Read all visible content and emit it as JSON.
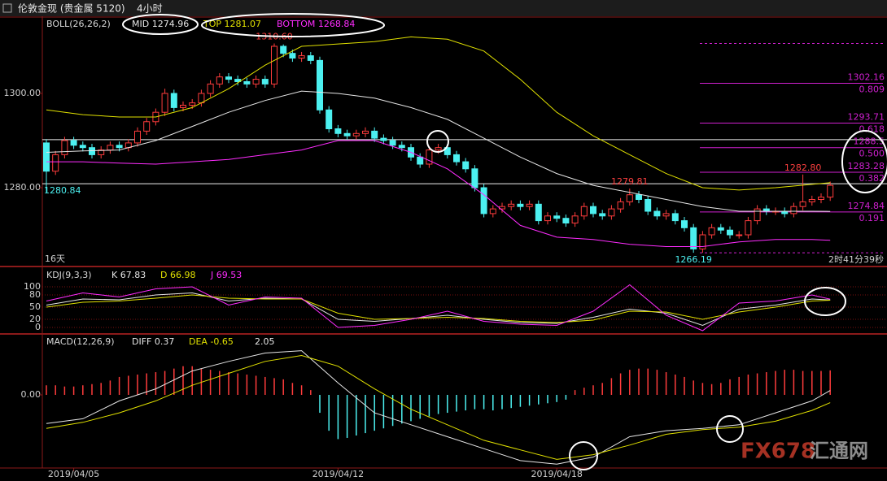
{
  "header": {
    "symbol": "伦敦金现 (贵金属 5120)",
    "period": "4小时"
  },
  "watermark": {
    "brand": "FX678",
    "name": "汇通网"
  },
  "chart_data": [
    {
      "type": "candlestick",
      "title": "BOLL(26,26,2)",
      "title_color": "#d8d8d8",
      "up_color": "#ff3c3c",
      "down_color": "#4cf0f0",
      "open": [
        1289.5,
        1283.5,
        1287,
        1290,
        1289,
        1288.5,
        1287,
        1288,
        1289,
        1288.5,
        1289.5,
        1292,
        1294,
        1296,
        1300,
        1297,
        1297.5,
        1298,
        1300,
        1302,
        1303.5,
        1303,
        1302.5,
        1302,
        1303,
        1302,
        1310,
        1308.5,
        1307.5,
        1308,
        1307,
        1296.5,
        1292.5,
        1291.5,
        1291,
        1291.5,
        1292,
        1290.5,
        1290,
        1289,
        1288.5,
        1286.5,
        1285,
        1288,
        1288.5,
        1287,
        1285.5,
        1284,
        1280,
        1274.5,
        1275.5,
        1276,
        1276.5,
        1276,
        1276.5,
        1273,
        1274,
        1273.5,
        1272.5,
        1274,
        1276,
        1274.5,
        1274,
        1275.5,
        1277,
        1278.5,
        1277.5,
        1275,
        1274,
        1274.5,
        1273,
        1271.5,
        1267,
        1270,
        1271.5,
        1271,
        1270,
        1270,
        1273,
        1275.5,
        1275,
        1275,
        1274.5,
        1276,
        1277,
        1277.5,
        1278
      ],
      "high": [
        1290.3,
        1287.8,
        1290.8,
        1290.8,
        1289.8,
        1289.3,
        1288.8,
        1289.8,
        1289.8,
        1290.3,
        1292.8,
        1294.8,
        1296.8,
        1301,
        1300.8,
        1298.3,
        1298.8,
        1300.8,
        1302.8,
        1304.3,
        1304.3,
        1303.8,
        1303.3,
        1303.8,
        1303.8,
        1310.6,
        1310.4,
        1309.3,
        1308.8,
        1308.8,
        1307.8,
        1297.3,
        1293.3,
        1292.3,
        1292.3,
        1292.8,
        1292.8,
        1291.3,
        1290.8,
        1289.8,
        1289.3,
        1287.3,
        1288.8,
        1289.3,
        1289.3,
        1287.8,
        1286.3,
        1284.8,
        1280.8,
        1276.3,
        1276.8,
        1277.3,
        1277.3,
        1277.3,
        1277.3,
        1274.8,
        1274.8,
        1274.3,
        1274.8,
        1276.8,
        1276.8,
        1275.3,
        1276.3,
        1277.8,
        1279.81,
        1279.3,
        1278.3,
        1275.8,
        1275.3,
        1275.3,
        1273.8,
        1272.3,
        1270.8,
        1272.3,
        1272.3,
        1271.8,
        1270.8,
        1273.8,
        1276.3,
        1276.3,
        1275.8,
        1275.8,
        1276.8,
        1282.8,
        1278.3,
        1278.8,
        1281.3
      ],
      "low": [
        1279,
        1282.7,
        1286.2,
        1288.2,
        1287.7,
        1286.2,
        1286.2,
        1287.2,
        1287.7,
        1287.7,
        1288.7,
        1291.2,
        1293.2,
        1295.2,
        1296.2,
        1296.2,
        1296.7,
        1297.2,
        1299.2,
        1301.2,
        1302.2,
        1301.7,
        1301.2,
        1301.2,
        1301.2,
        1301.2,
        1307.7,
        1306.7,
        1306.7,
        1306.2,
        1295.7,
        1291.7,
        1290.7,
        1290.2,
        1290.2,
        1290.7,
        1289.7,
        1289.2,
        1288.2,
        1287.7,
        1285.7,
        1284.2,
        1284.2,
        1287.2,
        1286.2,
        1284.7,
        1283.2,
        1279.2,
        1273.7,
        1273.7,
        1274.7,
        1275.2,
        1275.2,
        1275.2,
        1272.2,
        1272.2,
        1272.7,
        1271.7,
        1271.7,
        1273.2,
        1273.7,
        1273.2,
        1273.2,
        1274.7,
        1276.2,
        1276.7,
        1274.2,
        1273.2,
        1273.2,
        1272.2,
        1270.7,
        1266.19,
        1266.2,
        1269.2,
        1270.2,
        1269.2,
        1269.2,
        1269.2,
        1272.2,
        1274.2,
        1274.2,
        1273.7,
        1273.7,
        1275.2,
        1276.2,
        1276.7,
        1277.2
      ],
      "close": [
        1283.5,
        1287,
        1290,
        1289,
        1288.5,
        1287,
        1288,
        1289,
        1288.5,
        1289.5,
        1292,
        1294,
        1296,
        1300,
        1297,
        1297.5,
        1298,
        1300,
        1302,
        1303.5,
        1303,
        1302.5,
        1302,
        1303,
        1302,
        1310,
        1308.5,
        1307.5,
        1308,
        1307,
        1296.5,
        1292.5,
        1291.5,
        1291,
        1291.5,
        1292,
        1290.5,
        1290,
        1289,
        1288.5,
        1286.5,
        1285,
        1288,
        1288.5,
        1287,
        1285.5,
        1284,
        1280,
        1274.5,
        1275.5,
        1276,
        1276.5,
        1276,
        1276.5,
        1273,
        1274,
        1273.5,
        1272.5,
        1274,
        1276,
        1274.5,
        1274,
        1275.5,
        1277,
        1278.5,
        1277.5,
        1275,
        1274,
        1274.5,
        1273,
        1271.5,
        1267,
        1270,
        1271.5,
        1271,
        1270,
        1270,
        1273,
        1275.5,
        1275,
        1275,
        1274.5,
        1276,
        1277,
        1277.5,
        1278,
        1280.5
      ],
      "series": [
        {
          "name": "MID 1274.96",
          "color": "#e6e6e6",
          "x": [
            0,
            4,
            8,
            12,
            16,
            20,
            24,
            28,
            32,
            36,
            40,
            44,
            48,
            52,
            56,
            60,
            64,
            68,
            72,
            76,
            80,
            84,
            86
          ],
          "values": [
            1287.5,
            1287.8,
            1288,
            1290,
            1293,
            1296,
            1298.5,
            1300.5,
            1300,
            1299,
            1297,
            1294.5,
            1290.5,
            1286.5,
            1283,
            1280.5,
            1279,
            1277.5,
            1276,
            1275,
            1275,
            1275,
            1274.96
          ]
        },
        {
          "name": "TOP 1281.07",
          "color": "#e0e000",
          "x": [
            0,
            4,
            8,
            12,
            16,
            20,
            24,
            28,
            32,
            36,
            40,
            44,
            48,
            52,
            56,
            60,
            64,
            68,
            72,
            76,
            80,
            84,
            86
          ],
          "values": [
            1296.5,
            1295.5,
            1295,
            1295,
            1297,
            1301,
            1306,
            1310,
            1310.5,
            1311,
            1312,
            1311.5,
            1309,
            1303,
            1296,
            1291,
            1287,
            1283,
            1280,
            1279.5,
            1280,
            1280.7,
            1281.07
          ]
        },
        {
          "name": "BOTTOM 1268.84",
          "color": "#ff2cff",
          "x": [
            0,
            4,
            8,
            12,
            16,
            20,
            24,
            28,
            32,
            36,
            40,
            44,
            48,
            52,
            56,
            60,
            64,
            68,
            72,
            76,
            80,
            84,
            86
          ],
          "values": [
            1285.5,
            1285.5,
            1285.2,
            1285,
            1285.5,
            1286,
            1287,
            1288,
            1290,
            1290,
            1287.5,
            1284,
            1278.5,
            1272,
            1269.5,
            1269,
            1268,
            1267.5,
            1267.5,
            1268.5,
            1269,
            1269,
            1268.84
          ]
        }
      ],
      "ylim": [
        1263.45,
        1316.03
      ],
      "yticks": [
        {
          "value": 1280,
          "label": "1280.00"
        },
        {
          "value": 1300,
          "label": "1300.00"
        }
      ],
      "hlines": [
        {
          "value": 1290.2
        },
        {
          "value": 1280.84,
          "labeled": true
        }
      ],
      "hline_color": "#f0f0f0",
      "hline_label_color": "#4cf0f0",
      "fib_color": "#d020d0",
      "fib_bounds": [
        1310.6,
        1266.19
      ],
      "fib_levels": [
        {
          "value": 1302.16,
          "ratio": "0.809"
        },
        {
          "value": 1293.71,
          "ratio": "0.618"
        },
        {
          "value": 1288.5,
          "ratio": "0.500"
        },
        {
          "value": 1283.28,
          "ratio": "0.382"
        },
        {
          "value": 1274.84,
          "ratio": "0.191"
        }
      ],
      "annotations": [
        {
          "text": "1310.60",
          "x": 25,
          "y": 1310.6,
          "color": "#ff4040",
          "anchor": "above"
        },
        {
          "text": "1279.81",
          "x": 64,
          "y": 1279.81,
          "color": "#ff4040",
          "anchor": "above"
        },
        {
          "text": "1282.80",
          "x": 83,
          "y": 1282.8,
          "color": "#ff4040",
          "anchor": "above"
        },
        {
          "text": "1266.19",
          "x": 71,
          "y": 1266.19,
          "color": "#4cf0f0",
          "anchor": "below"
        }
      ],
      "left_note": "16天",
      "right_note": "2时41分39秒"
    },
    {
      "type": "line",
      "title": "KDJ(9,3,3)",
      "title_color": "#d8d8d8",
      "series": [
        {
          "name": "K 67.83",
          "color": "#e6e6e6",
          "x": [
            0,
            4,
            8,
            12,
            16,
            20,
            24,
            28,
            32,
            36,
            40,
            44,
            48,
            52,
            56,
            60,
            64,
            68,
            72,
            76,
            80,
            84,
            86
          ],
          "values": [
            55,
            70,
            68,
            80,
            85,
            65,
            72,
            70,
            20,
            15,
            22,
            30,
            20,
            12,
            10,
            25,
            45,
            35,
            5,
            45,
            55,
            70,
            67.83
          ]
        },
        {
          "name": "D 66.98",
          "color": "#e0e000",
          "x": [
            0,
            4,
            8,
            12,
            16,
            20,
            24,
            28,
            32,
            36,
            40,
            44,
            48,
            52,
            56,
            60,
            64,
            68,
            72,
            76,
            80,
            84,
            86
          ],
          "values": [
            50,
            62,
            65,
            72,
            80,
            72,
            70,
            70,
            35,
            20,
            22,
            25,
            22,
            15,
            12,
            18,
            40,
            38,
            20,
            38,
            50,
            65,
            66.98
          ]
        },
        {
          "name": "J 69.53",
          "color": "#ff2cff",
          "x": [
            0,
            4,
            8,
            12,
            16,
            20,
            24,
            28,
            32,
            36,
            40,
            44,
            48,
            52,
            56,
            60,
            64,
            68,
            72,
            76,
            80,
            84,
            86
          ],
          "values": [
            65,
            85,
            75,
            95,
            100,
            55,
            75,
            72,
            0,
            5,
            20,
            40,
            15,
            8,
            5,
            40,
            105,
            30,
            -8,
            60,
            65,
            80,
            69.53
          ]
        }
      ],
      "ylim": [
        -14,
        146
      ],
      "yticks": [
        0,
        20,
        50,
        80,
        100
      ],
      "grid": true,
      "grid_color": "#7a1010"
    },
    {
      "type": "macd",
      "title": "MACD(12,26,9)",
      "title_color": "#d8d8d8",
      "histogram": {
        "name": "2.05",
        "color": "#e6e6e6",
        "up_color": "#ff3c3c",
        "down_color": "#4cf0f0",
        "values": [
          0.8,
          0.8,
          0.7,
          0.7,
          0.8,
          0.9,
          1.0,
          1.2,
          1.5,
          1.6,
          1.7,
          1.8,
          1.9,
          2.0,
          2.2,
          2.4,
          2.4,
          2.2,
          2.1,
          2.0,
          1.9,
          1.8,
          1.7,
          1.6,
          1.5,
          1.4,
          1.3,
          1.0,
          0.8,
          0.4,
          -1.5,
          -3.0,
          -3.7,
          -3.6,
          -3.4,
          -3.2,
          -3.0,
          -2.8,
          -2.6,
          -2.4,
          -2.2,
          -2.0,
          -1.8,
          -1.6,
          -1.5,
          -1.4,
          -1.3,
          -1.2,
          -1.2,
          -1.3,
          -1.2,
          -1.1,
          -1.0,
          -0.9,
          -0.8,
          -0.7,
          -0.6,
          -0.4,
          0.4,
          0.6,
          0.8,
          1.0,
          1.4,
          1.8,
          2.1,
          2.2,
          2.2,
          2.1,
          1.9,
          1.7,
          1.5,
          1.2,
          1.0,
          0.9,
          1.0,
          1.3,
          1.5,
          1.7,
          1.8,
          1.9,
          2.0,
          2.1,
          2.1,
          2.0,
          2.0,
          2.0,
          2.05
        ]
      },
      "series": [
        {
          "name": "DIFF 0.37",
          "color": "#e6e6e6",
          "x": [
            0,
            4,
            8,
            12,
            16,
            20,
            24,
            28,
            32,
            36,
            40,
            44,
            48,
            52,
            56,
            60,
            64,
            68,
            72,
            76,
            80,
            84,
            86
          ],
          "values": [
            -2.4,
            -2,
            -0.5,
            0.5,
            2,
            2.8,
            3.5,
            3.7,
            1,
            -1.5,
            -2.5,
            -3.5,
            -4.5,
            -5.5,
            -5.8,
            -5.2,
            -3.5,
            -3,
            -2.8,
            -2.5,
            -1.5,
            -0.5,
            0.37
          ]
        },
        {
          "name": "DEA -0.65",
          "color": "#e0e000",
          "x": [
            0,
            4,
            8,
            12,
            16,
            20,
            24,
            28,
            32,
            36,
            40,
            44,
            48,
            52,
            56,
            60,
            64,
            68,
            72,
            76,
            80,
            84,
            86
          ],
          "values": [
            -2.8,
            -2.3,
            -1.5,
            -0.5,
            0.8,
            1.8,
            2.8,
            3.3,
            2.4,
            0.5,
            -1.2,
            -2.5,
            -3.8,
            -4.6,
            -5.4,
            -5.0,
            -4.2,
            -3.3,
            -2.9,
            -2.7,
            -2.2,
            -1.3,
            -0.65
          ]
        }
      ],
      "ylim": [
        -6.05,
        5.03
      ],
      "yticks": [
        {
          "value": 0,
          "label": "0.00"
        }
      ],
      "xticks": [
        {
          "value": 3,
          "label": "2019/04/05"
        },
        {
          "value": 32,
          "label": "2019/04/12"
        },
        {
          "value": 56,
          "label": "2019/04/18"
        }
      ]
    }
  ]
}
